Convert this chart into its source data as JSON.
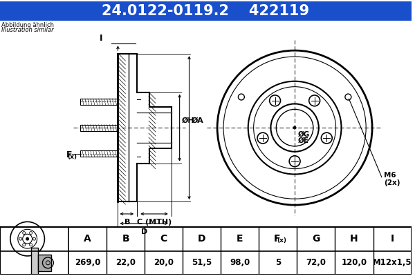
{
  "title_part": "24.0122-0119.2",
  "title_code": "422119",
  "subtitle1": "Abbildung ähnlich",
  "subtitle2": "Illustration similar",
  "header_bg": "#1a4fcc",
  "table_headers": [
    "A",
    "B",
    "C",
    "D",
    "E",
    "F(x)",
    "G",
    "H",
    "I"
  ],
  "table_values": [
    "269,0",
    "22,0",
    "20,0",
    "51,5",
    "98,0",
    "5",
    "72,0",
    "120,0",
    "M12x1,5"
  ],
  "bg_color": "#ffffff",
  "line_color": "#000000",
  "table_bg_header": "#d8d8d8",
  "table_bg_values": "#f0f0f0",
  "table_border": "#000000"
}
